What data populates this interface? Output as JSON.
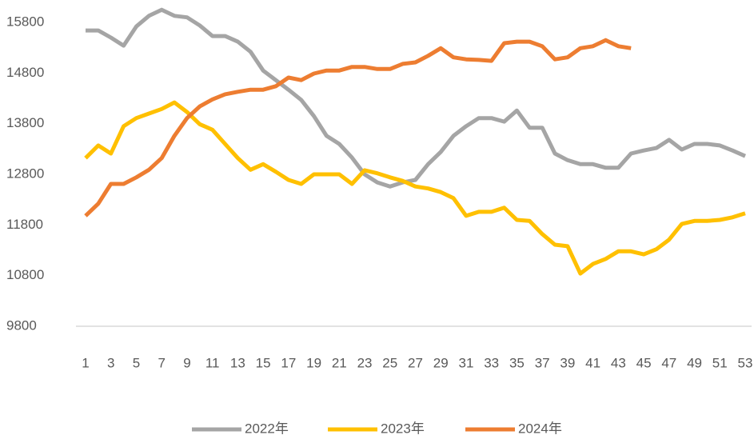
{
  "chart_data": {
    "type": "line",
    "categories": [
      "1",
      null,
      "3",
      null,
      "5",
      null,
      "7",
      null,
      "9",
      null,
      "11",
      null,
      "13",
      null,
      "15",
      null,
      "17",
      null,
      "19",
      null,
      "21",
      null,
      "23",
      null,
      "25",
      null,
      "27",
      null,
      "29",
      null,
      "31",
      null,
      "33",
      null,
      "35",
      null,
      "37",
      null,
      "39",
      null,
      "41",
      null,
      "43",
      null,
      "45",
      null,
      "47",
      null,
      "49",
      null,
      "51",
      null,
      "53"
    ],
    "series": [
      {
        "name": "2022年",
        "color": "#a5a5a5",
        "values": [
          15640,
          15640,
          15500,
          15340,
          15720,
          15930,
          16050,
          15930,
          15900,
          15740,
          15530,
          15530,
          15420,
          15220,
          14850,
          14660,
          14470,
          14270,
          13950,
          13560,
          13400,
          13130,
          12800,
          12640,
          12560,
          12640,
          12690,
          13000,
          13240,
          13560,
          13750,
          13910,
          13910,
          13840,
          14060,
          13720,
          13720,
          13210,
          13080,
          13000,
          13000,
          12930,
          12930,
          13210,
          13270,
          13320,
          13480,
          13290,
          13400,
          13400,
          13370,
          13270,
          13160
        ]
      },
      {
        "name": "2023年",
        "color": "#ffc000",
        "values": [
          13120,
          13370,
          13210,
          13750,
          13910,
          14000,
          14090,
          14220,
          14030,
          13790,
          13680,
          13400,
          13120,
          12890,
          13000,
          12850,
          12690,
          12610,
          12800,
          12800,
          12800,
          12610,
          12880,
          12820,
          12740,
          12670,
          12560,
          12520,
          12450,
          12330,
          11980,
          12060,
          12060,
          12140,
          11900,
          11880,
          11620,
          11410,
          11380,
          10840,
          11030,
          11130,
          11280,
          11280,
          11220,
          11320,
          11510,
          11820,
          11880,
          11880,
          11900,
          11950,
          12030
        ]
      },
      {
        "name": "2024年",
        "color": "#ed7d31",
        "values": [
          11980,
          12220,
          12610,
          12610,
          12740,
          12890,
          13120,
          13560,
          13910,
          14140,
          14280,
          14380,
          14430,
          14470,
          14470,
          14540,
          14710,
          14660,
          14790,
          14850,
          14850,
          14920,
          14920,
          14880,
          14880,
          14980,
          15010,
          15140,
          15290,
          15110,
          15070,
          15060,
          15040,
          15390,
          15420,
          15420,
          15330,
          15070,
          15110,
          15290,
          15330,
          15450,
          15330,
          15290,
          null,
          null,
          null,
          null,
          null,
          null,
          null,
          null,
          null
        ]
      }
    ],
    "ylim": [
      9800,
      16100
    ],
    "yticks": [
      9800,
      10800,
      11800,
      12800,
      13800,
      14800,
      15800
    ],
    "legend": "bottom"
  }
}
